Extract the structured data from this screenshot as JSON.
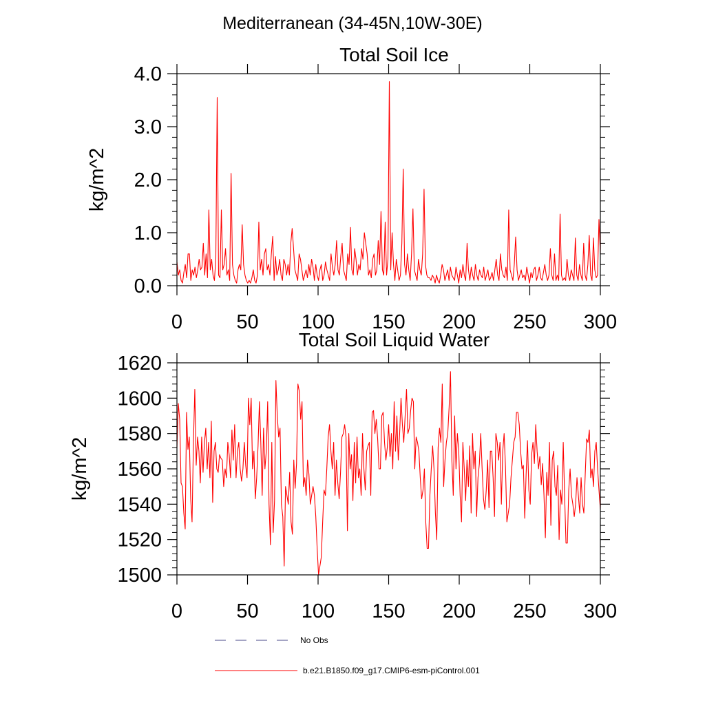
{
  "figure": {
    "suptitle": "Mediterranean (34-45N,10W-30E)",
    "line_color": "#ff0000",
    "obs_color": "#4a4a8a"
  },
  "legend": {
    "obs_label": "No Obs",
    "model_label": "b.e21.B1850.f09_g17.CMIP6-esm-piControl.001"
  },
  "chart_data": [
    {
      "type": "line",
      "title": "Total Soil Ice",
      "xlabel": "",
      "ylabel": "kg/m^2",
      "xlim": [
        0,
        300
      ],
      "ylim": [
        0,
        4
      ],
      "xticks": [
        0,
        50,
        100,
        150,
        200,
        250,
        300
      ],
      "xtick_labels": [
        "0",
        "50",
        "100",
        "150",
        "200",
        "250",
        "300"
      ],
      "yticks": [
        0,
        1,
        2,
        3,
        4
      ],
      "ytick_labels": [
        "0.0",
        "1.0",
        "2.0",
        "3.0",
        "4.0"
      ],
      "series": [
        {
          "name": "b.e21.B1850.f09_g17.CMIP6-esm-piControl.001",
          "values": [
            0.45,
            0.2,
            0.3,
            0.1,
            0.05,
            0.25,
            0.4,
            0.15,
            0.6,
            0.6,
            0.1,
            0.3,
            0.2,
            0.35,
            0.15,
            0.3,
            0.5,
            0.3,
            0.35,
            0.8,
            0.2,
            0.6,
            0.15,
            1.43,
            0.3,
            0.5,
            0.2,
            0.1,
            0.5,
            3.55,
            0.2,
            0.15,
            1.43,
            0.3,
            0.4,
            0.7,
            0.2,
            0.3,
            0.1,
            2.12,
            0.4,
            0.2,
            0.1,
            0.05,
            0.3,
            0.4,
            0.3,
            1.15,
            0.4,
            0.2,
            0.1,
            0.05,
            0.1,
            0.05,
            0.15,
            0.3,
            0.1,
            0.05,
            0.2,
            1.2,
            0.3,
            0.5,
            0.2,
            0.6,
            0.7,
            0.3,
            0.4,
            0.2,
            0.6,
            0.93,
            0.1,
            0.55,
            0.2,
            0.3,
            0.5,
            0.2,
            0.1,
            0.5,
            0.4,
            0.2,
            0.4,
            0.2,
            0.8,
            1.08,
            0.7,
            0.3,
            0.2,
            0.1,
            0.6,
            0.5,
            0.3,
            0.1,
            0.2,
            0.3,
            0.15,
            0.4,
            0.2,
            0.5,
            0.35,
            0.1,
            0.4,
            0.2,
            0.1,
            0.3,
            0.4,
            0.1,
            0.2,
            0.45,
            0.3,
            0.2,
            0.1,
            0.6,
            0.35,
            0.2,
            0.4,
            0.85,
            0.3,
            0.2,
            0.55,
            0.8,
            0.3,
            0.2,
            0.1,
            0.6,
            0.4,
            1.1,
            0.3,
            0.2,
            0.7,
            0.5,
            0.2,
            0.4,
            0.3,
            0.7,
            0.5,
            1.0,
            0.8,
            0.6,
            0.2,
            0.3,
            0.15,
            0.5,
            0.6,
            0.2,
            0.3,
            0.85,
            0.4,
            1.4,
            0.3,
            0.2,
            1.2,
            0.2,
            0.5,
            3.85,
            0.3,
            1.0,
            0.4,
            0.1,
            0.5,
            0.3,
            0.1,
            0.2,
            0.8,
            2.2,
            0.4,
            0.2,
            0.6,
            0.3,
            0.1,
            0.6,
            1.45,
            0.3,
            0.2,
            0.1,
            0.5,
            0.3,
            0.2,
            0.6,
            1.82,
            0.4,
            0.2,
            0.15,
            0.15,
            0.1,
            0.2,
            0.15,
            0.05,
            0.2,
            0.1,
            0.05,
            0.2,
            0.4,
            0.3,
            0.1,
            0.2,
            0.3,
            0.1,
            0.35,
            0.2,
            0.15,
            0.1,
            0.35,
            0.2,
            0.05,
            0.3,
            0.15,
            0.4,
            0.2,
            0.1,
            0.8,
            0.3,
            0.1,
            0.35,
            0.2,
            0.1,
            0.4,
            0.2,
            0.1,
            0.3,
            0.2,
            0.15,
            0.35,
            0.1,
            0.2,
            0.3,
            0.1,
            0.15,
            0.25,
            0.1,
            0.3,
            0.5,
            0.2,
            0.1,
            0.6,
            0.3,
            0.2,
            0.15,
            0.35,
            0.1,
            1.43,
            0.3,
            0.2,
            0.1,
            0.4,
            0.92,
            0.3,
            0.1,
            0.2,
            0.3,
            0.15,
            0.2,
            0.1,
            0.35,
            0.2,
            0.05,
            0.25,
            0.15,
            0.3,
            0.35,
            0.1,
            0.2,
            0.35,
            0.15,
            0.1,
            0.25,
            0.4,
            0.2,
            0.1,
            0.2,
            0.7,
            0.2,
            0.1,
            0.6,
            0.1,
            0.2,
            0.1,
            1.35,
            0.2,
            0.1,
            0.15,
            0.1,
            0.5,
            0.2,
            0.1,
            0.3,
            0.2,
            0.1,
            0.9,
            0.2,
            0.1,
            0.4,
            0.2,
            0.1,
            0.8,
            0.2,
            0.1,
            0.4,
            0.95,
            0.2,
            0.1,
            0.9,
            0.3,
            0.15,
            0.2,
            1.25,
            0.6
          ]
        }
      ]
    },
    {
      "type": "line",
      "title": "Total Soil Liquid Water",
      "xlabel": "",
      "ylabel": "kg/m^2",
      "xlim": [
        0,
        300
      ],
      "ylim": [
        1500,
        1620
      ],
      "xticks": [
        0,
        50,
        100,
        150,
        200,
        250,
        300
      ],
      "xtick_labels": [
        "0",
        "50",
        "100",
        "150",
        "200",
        "250",
        "300"
      ],
      "yticks": [
        1500,
        1520,
        1540,
        1560,
        1580,
        1600,
        1620
      ],
      "ytick_labels": [
        "1500",
        "1520",
        "1540",
        "1560",
        "1580",
        "1600",
        "1620"
      ],
      "series": [
        {
          "name": "b.e21.B1850.f09_g17.CMIP6-esm-piControl.001",
          "values": [
            1572,
            1597,
            1588,
            1552,
            1550,
            1535,
            1526,
            1592,
            1571,
            1578,
            1543,
            1530,
            1575,
            1605,
            1562,
            1578,
            1570,
            1552,
            1578,
            1558,
            1575,
            1583,
            1560,
            1575,
            1555,
            1587,
            1541,
            1570,
            1575,
            1560,
            1558,
            1568,
            1566,
            1565,
            1550,
            1560,
            1555,
            1575,
            1568,
            1555,
            1582,
            1565,
            1585,
            1555,
            1570,
            1575,
            1560,
            1553,
            1560,
            1575,
            1562,
            1555,
            1600,
            1585,
            1600,
            1560,
            1570,
            1543,
            1555,
            1573,
            1598,
            1575,
            1545,
            1583,
            1560,
            1570,
            1598,
            1540,
            1517,
            1575,
            1524,
            1542,
            1610,
            1590,
            1578,
            1583,
            1540,
            1533,
            1505,
            1550,
            1545,
            1540,
            1558,
            1530,
            1523,
            1565,
            1549,
            1563,
            1608,
            1604,
            1588,
            1598,
            1550,
            1555,
            1545,
            1565,
            1557,
            1540,
            1545,
            1550,
            1545,
            1533,
            1515,
            1500,
            1505,
            1510,
            1530,
            1548,
            1545,
            1560,
            1578,
            1585,
            1570,
            1560,
            1575,
            1545,
            1565,
            1552,
            1543,
            1558,
            1578,
            1580,
            1585,
            1578,
            1525,
            1580,
            1560,
            1568,
            1542,
            1575,
            1552,
            1578,
            1555,
            1560,
            1545,
            1580,
            1560,
            1548,
            1570,
            1573,
            1575,
            1545,
            1592,
            1593,
            1580,
            1588,
            1577,
            1560,
            1560,
            1590,
            1592,
            1575,
            1565,
            1572,
            1585,
            1567,
            1580,
            1560,
            1598,
            1570,
            1590,
            1565,
            1580,
            1600,
            1585,
            1575,
            1590,
            1605,
            1580,
            1583,
            1593,
            1600,
            1598,
            1560,
            1578,
            1575,
            1570,
            1555,
            1543,
            1548,
            1560,
            1530,
            1515,
            1515,
            1545,
            1560,
            1573,
            1560,
            1535,
            1520,
            1572,
            1583,
            1575,
            1608,
            1550,
            1565,
            1575,
            1580,
            1595,
            1615,
            1565,
            1545,
            1590,
            1560,
            1580,
            1570,
            1545,
            1530,
            1575,
            1560,
            1542,
            1565,
            1550,
            1573,
            1535,
            1580,
            1560,
            1570,
            1533,
            1555,
            1563,
            1580,
            1560,
            1543,
            1537,
            1548,
            1565,
            1538,
            1570,
            1570,
            1555,
            1533,
            1580,
            1575,
            1565,
            1575,
            1540,
            1570,
            1580,
            1561,
            1530,
            1535,
            1540,
            1555,
            1565,
            1575,
            1578,
            1592,
            1592,
            1585,
            1570,
            1560,
            1562,
            1532,
            1557,
            1576,
            1548,
            1540,
            1568,
            1575,
            1563,
            1585,
            1570,
            1560,
            1567,
            1551,
            1563,
            1545,
            1521,
            1558,
            1545,
            1575,
            1528,
            1565,
            1570,
            1550,
            1545,
            1562,
            1520,
            1548,
            1540,
            1575,
            1545,
            1518,
            1518,
            1548,
            1560,
            1545,
            1540,
            1533,
            1540,
            1555,
            1545,
            1535,
            1555,
            1540,
            1535,
            1557,
            1577,
            1575,
            1582,
            1555,
            1560,
            1550,
            1570,
            1575,
            1560,
            1548,
            1537
          ]
        }
      ]
    }
  ]
}
